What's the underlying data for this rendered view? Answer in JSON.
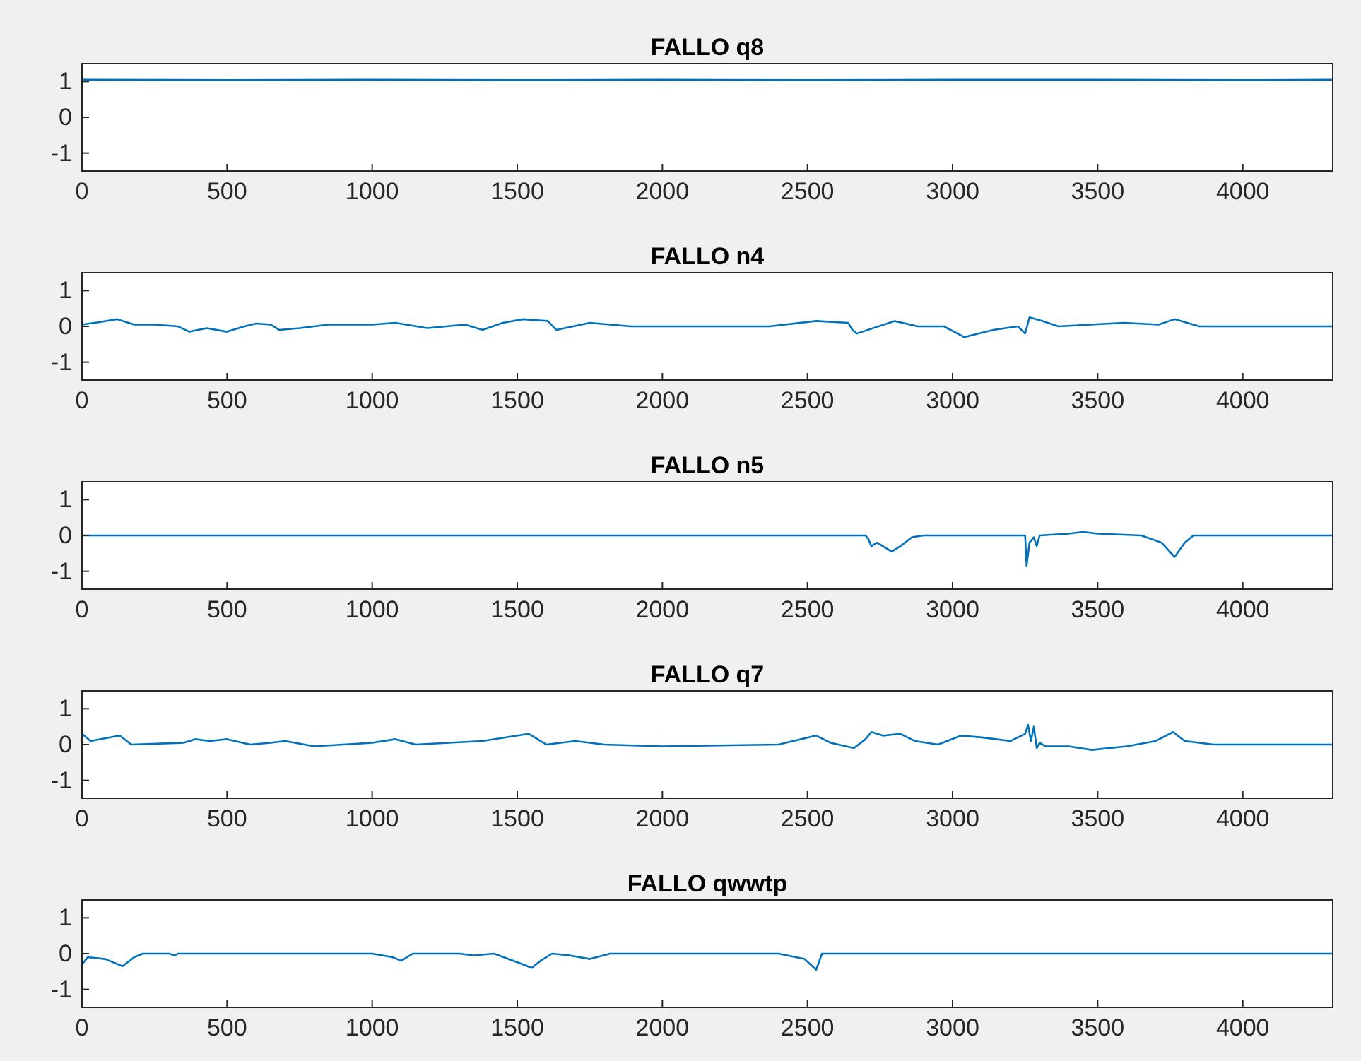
{
  "chart_data": [
    {
      "type": "line",
      "title": "FALLO q8",
      "xlim": [
        0,
        4310
      ],
      "xticks": [
        0,
        500,
        1000,
        1500,
        2000,
        2500,
        3000,
        3500,
        4000
      ],
      "ylim": [
        -1.5,
        1.5
      ],
      "yticks": [
        -1,
        0,
        1
      ],
      "series": [
        {
          "color": "#0072bd",
          "x": [
            0,
            500,
            1000,
            1500,
            2000,
            2500,
            3000,
            3500,
            4000,
            4310
          ],
          "values": [
            1.05,
            1.04,
            1.05,
            1.04,
            1.05,
            1.04,
            1.05,
            1.05,
            1.04,
            1.05
          ]
        }
      ]
    },
    {
      "type": "line",
      "title": "FALLO n4",
      "xlim": [
        0,
        4310
      ],
      "xticks": [
        0,
        500,
        1000,
        1500,
        2000,
        2500,
        3000,
        3500,
        4000
      ],
      "ylim": [
        -1.5,
        1.5
      ],
      "yticks": [
        -1,
        0,
        1
      ],
      "series": [
        {
          "color": "#0072bd",
          "x": [
            0,
            60,
            120,
            180,
            250,
            330,
            370,
            430,
            500,
            560,
            600,
            650,
            680,
            750,
            850,
            1000,
            1080,
            1190,
            1320,
            1380,
            1450,
            1520,
            1605,
            1635,
            1750,
            1890,
            2100,
            2370,
            2530,
            2640,
            2655,
            2670,
            2800,
            2880,
            2970,
            3040,
            3140,
            3225,
            3250,
            3265,
            3310,
            3365,
            3590,
            3710,
            3765,
            3850,
            4000,
            4310
          ],
          "values": [
            0.05,
            0.12,
            0.2,
            0.05,
            0.05,
            0.0,
            -0.15,
            -0.05,
            -0.15,
            0.0,
            0.08,
            0.05,
            -0.1,
            -0.05,
            0.05,
            0.05,
            0.1,
            -0.05,
            0.05,
            -0.1,
            0.1,
            0.2,
            0.15,
            -0.1,
            0.1,
            0.0,
            0.0,
            0.0,
            0.15,
            0.1,
            -0.1,
            -0.2,
            0.15,
            0.0,
            0.0,
            -0.3,
            -0.1,
            0.0,
            -0.2,
            0.25,
            0.15,
            0.0,
            0.1,
            0.05,
            0.2,
            0.0,
            0.0,
            0.0
          ]
        }
      ]
    },
    {
      "type": "line",
      "title": "FALLO n5",
      "xlim": [
        0,
        4310
      ],
      "xticks": [
        0,
        500,
        1000,
        1500,
        2000,
        2500,
        3000,
        3500,
        4000
      ],
      "ylim": [
        -1.5,
        1.5
      ],
      "yticks": [
        -1,
        0,
        1
      ],
      "series": [
        {
          "color": "#0072bd",
          "x": [
            0,
            1000,
            2000,
            2700,
            2710,
            2720,
            2740,
            2790,
            2820,
            2860,
            2900,
            3000,
            3250,
            3255,
            3265,
            3280,
            3290,
            3300,
            3400,
            3450,
            3500,
            3650,
            3720,
            3765,
            3800,
            3830,
            4310
          ],
          "values": [
            0,
            0,
            0,
            0,
            -0.1,
            -0.3,
            -0.2,
            -0.45,
            -0.3,
            -0.05,
            0,
            0,
            0,
            -0.85,
            -0.2,
            -0.05,
            -0.3,
            0,
            0.05,
            0.1,
            0.05,
            0,
            -0.2,
            -0.6,
            -0.2,
            0,
            0
          ]
        }
      ]
    },
    {
      "type": "line",
      "title": "FALLO q7",
      "xlim": [
        0,
        4310
      ],
      "xticks": [
        0,
        500,
        1000,
        1500,
        2000,
        2500,
        3000,
        3500,
        4000
      ],
      "ylim": [
        -1.5,
        1.5
      ],
      "yticks": [
        -1,
        0,
        1
      ],
      "series": [
        {
          "color": "#0072bd",
          "x": [
            0,
            30,
            130,
            170,
            350,
            390,
            440,
            500,
            580,
            650,
            700,
            800,
            1000,
            1080,
            1150,
            1380,
            1540,
            1600,
            1700,
            1800,
            2000,
            2400,
            2530,
            2580,
            2660,
            2700,
            2720,
            2760,
            2820,
            2870,
            2950,
            3030,
            3100,
            3200,
            3250,
            3260,
            3270,
            3280,
            3290,
            3300,
            3320,
            3400,
            3480,
            3600,
            3700,
            3760,
            3800,
            3900,
            4310
          ],
          "values": [
            0.3,
            0.1,
            0.25,
            0.0,
            0.05,
            0.15,
            0.1,
            0.15,
            0.0,
            0.05,
            0.1,
            -0.05,
            0.05,
            0.15,
            0.0,
            0.1,
            0.3,
            0.0,
            0.1,
            0.0,
            -0.05,
            0.0,
            0.25,
            0.05,
            -0.1,
            0.15,
            0.35,
            0.25,
            0.3,
            0.1,
            0.0,
            0.25,
            0.2,
            0.1,
            0.3,
            0.55,
            0.1,
            0.5,
            -0.1,
            0.05,
            -0.05,
            -0.05,
            -0.15,
            -0.05,
            0.1,
            0.35,
            0.1,
            0.0,
            0.0
          ]
        }
      ]
    },
    {
      "type": "line",
      "title": "FALLO qwwtp",
      "xlim": [
        0,
        4310
      ],
      "xticks": [
        0,
        500,
        1000,
        1500,
        2000,
        2500,
        3000,
        3500,
        4000
      ],
      "ylim": [
        -1.5,
        1.5
      ],
      "yticks": [
        -1,
        0,
        1
      ],
      "series": [
        {
          "color": "#0072bd",
          "x": [
            0,
            20,
            80,
            140,
            180,
            210,
            300,
            320,
            330,
            1000,
            1070,
            1100,
            1140,
            1300,
            1350,
            1420,
            1520,
            1550,
            1580,
            1620,
            1680,
            1750,
            1820,
            2400,
            2490,
            2530,
            2550,
            4310
          ],
          "values": [
            -0.3,
            -0.1,
            -0.15,
            -0.35,
            -0.1,
            0.0,
            0.0,
            -0.05,
            0.0,
            0.0,
            -0.1,
            -0.2,
            0.0,
            0.0,
            -0.05,
            0.0,
            -0.3,
            -0.4,
            -0.2,
            0.0,
            -0.05,
            -0.15,
            0.0,
            0.0,
            -0.15,
            -0.45,
            0.0,
            0.0
          ]
        }
      ]
    }
  ]
}
